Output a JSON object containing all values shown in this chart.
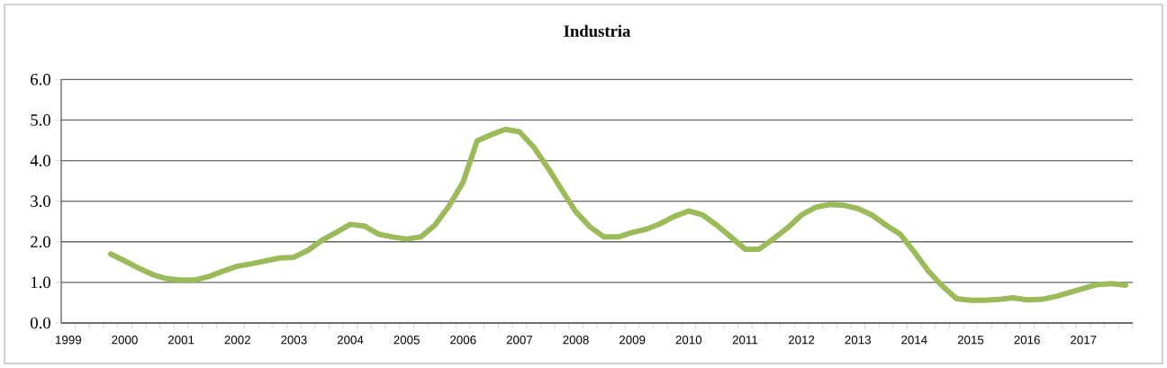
{
  "chart_data": {
    "type": "line",
    "title": "Industria",
    "categories": [
      "1999",
      null,
      null,
      null,
      "2000",
      null,
      null,
      null,
      "2001",
      null,
      null,
      null,
      "2002",
      null,
      null,
      null,
      "2003",
      null,
      null,
      null,
      "2004",
      null,
      null,
      null,
      "2005",
      null,
      null,
      null,
      "2006",
      null,
      null,
      null,
      "2007",
      null,
      null,
      null,
      "2008",
      null,
      null,
      null,
      "2009",
      null,
      null,
      null,
      "2010",
      null,
      null,
      null,
      "2011",
      null,
      null,
      null,
      "2012",
      null,
      null,
      null,
      "2013",
      null,
      null,
      null,
      "2014",
      null,
      null,
      null,
      "2015",
      null,
      null,
      null,
      "2016",
      null,
      null,
      null,
      "2017",
      null,
      null,
      null
    ],
    "series": [
      {
        "color": "#9bbb59",
        "values": [
          null,
          null,
          null,
          1.7,
          1.53,
          1.35,
          1.19,
          1.09,
          1.06,
          1.06,
          1.15,
          1.28,
          1.4,
          1.46,
          1.53,
          1.6,
          1.62,
          1.79,
          2.04,
          2.23,
          2.43,
          2.39,
          2.19,
          2.12,
          2.07,
          2.12,
          2.41,
          2.88,
          3.47,
          4.49,
          4.64,
          4.77,
          4.71,
          4.34,
          3.83,
          3.28,
          2.74,
          2.37,
          2.12,
          2.12,
          2.23,
          2.31,
          2.45,
          2.63,
          2.76,
          2.66,
          2.41,
          2.12,
          1.82,
          1.82,
          2.07,
          2.34,
          2.66,
          2.85,
          2.92,
          2.9,
          2.82,
          2.66,
          2.41,
          2.19,
          1.75,
          1.28,
          0.91,
          0.6,
          0.56,
          0.56,
          0.58,
          0.62,
          0.57,
          0.58,
          0.65,
          0.75,
          0.85,
          0.95,
          0.97,
          0.93
        ]
      }
    ],
    "ylim": [
      0,
      6
    ],
    "yticks": [
      {
        "value": 0,
        "label": "0.0"
      },
      {
        "value": 1,
        "label": "1.0"
      },
      {
        "value": 2,
        "label": "2.0"
      },
      {
        "value": 3,
        "label": "3.0"
      },
      {
        "value": 4,
        "label": "4.0"
      },
      {
        "value": 5,
        "label": "5.0"
      },
      {
        "value": 6,
        "label": "6.0"
      }
    ],
    "grid": "y"
  }
}
